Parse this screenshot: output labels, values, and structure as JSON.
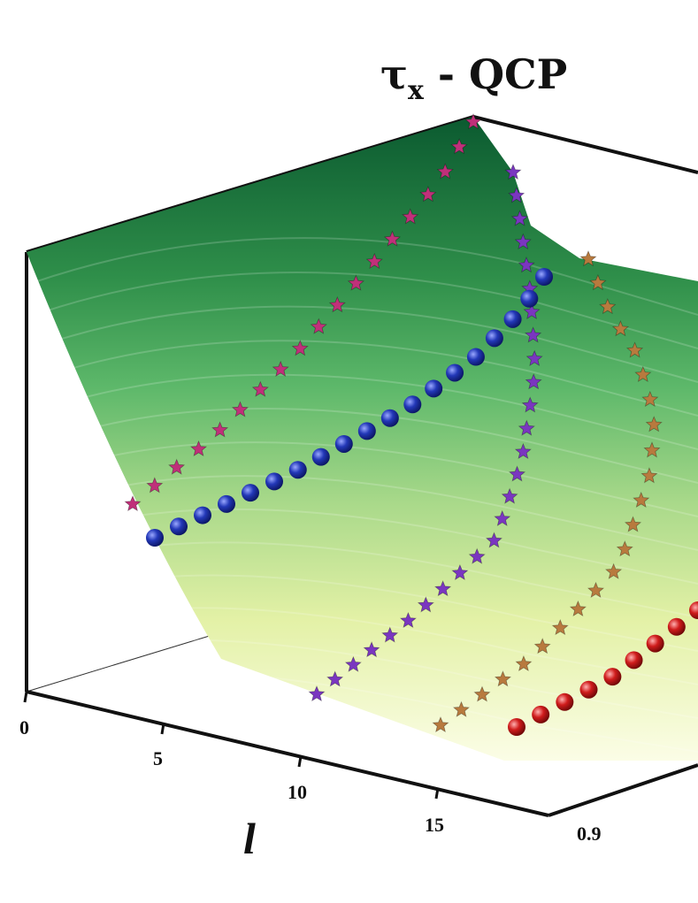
{
  "chart_data": {
    "type": "surface",
    "title": {
      "symbol": "τ",
      "subscript": "x",
      "rest": " - QCP"
    },
    "x_axis": {
      "label": "l",
      "ticks": [
        "0",
        "5",
        "10",
        "15"
      ]
    },
    "y_axis": {
      "ticks": [
        "0.9"
      ]
    },
    "colors": {
      "surface_top": "#0b5a30",
      "surface_mid": "#5db86a",
      "surface_low": "#e9f2a8",
      "surface_bottom": "#fbfde6",
      "blue_markers": "#1b2fa8",
      "red_markers": "#c01818",
      "pink_stars": "#c0307a",
      "purple_stars": "#7a36c0",
      "orange_stars": "#b87a3e"
    },
    "series": [
      {
        "marker": "sphere",
        "color": "blue",
        "points": 19
      },
      {
        "marker": "sphere",
        "color": "red",
        "points": 9
      },
      {
        "marker": "star",
        "color": "pink",
        "points": 19
      },
      {
        "marker": "star",
        "color": "purple",
        "points": 27
      },
      {
        "marker": "star",
        "color": "orange",
        "points": 23
      }
    ]
  }
}
